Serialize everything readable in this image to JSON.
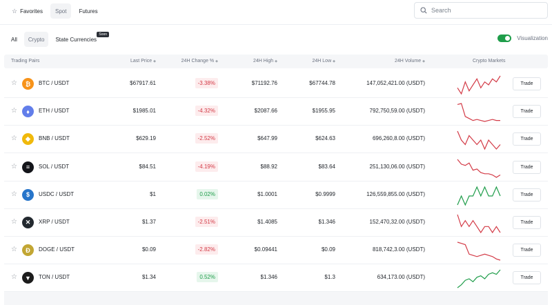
{
  "topbar": {
    "tabs": [
      {
        "label": "Favorites",
        "icon": "star-icon"
      },
      {
        "label": "Spot"
      },
      {
        "label": "Futures"
      }
    ],
    "search_placeholder": "Search"
  },
  "subbar": {
    "tabs": [
      "All",
      "Crypto",
      "State Currencies"
    ],
    "soon_badge": "Soon",
    "visualization_label": "Visualization"
  },
  "table": {
    "headers": {
      "pair": "Trading Pairs",
      "price": "Last Price",
      "change": "24H Change %",
      "high": "24H High",
      "low": "24H Low",
      "volume": "24H Volume",
      "markets": "Crypto Markets"
    },
    "trade_label": "Trade",
    "rows": [
      {
        "pair": "BTC / USDT",
        "price": "$67917.61",
        "change": "-3.38%",
        "dir": "neg",
        "high": "$71192.76",
        "low": "$67744.78",
        "volume": "147,052,421.00 (USDT)",
        "icon": "btc-icon",
        "color": "#f7931a",
        "glyph": "₿",
        "spark": [
          92,
          90,
          94,
          91,
          93,
          95,
          92,
          94,
          93,
          95,
          94,
          96
        ]
      },
      {
        "pair": "ETH / USDT",
        "price": "$1985.01",
        "change": "-4.32%",
        "dir": "neg",
        "high": "$2087.66",
        "low": "$1955.95",
        "volume": "792,750,59.00 (USDT)",
        "icon": "eth-icon",
        "color": "#627eea",
        "glyph": "♦",
        "spark": [
          96,
          97,
          84,
          82,
          80,
          81,
          80,
          79,
          80,
          81,
          80,
          80
        ]
      },
      {
        "pair": "BNB / USDT",
        "price": "$629.19",
        "change": "-2.52%",
        "dir": "neg",
        "high": "$647.99",
        "low": "$624.63",
        "volume": "696,260,8.00 (USDT)",
        "icon": "bnb-icon",
        "color": "#f0b90b",
        "glyph": "◆",
        "spark": [
          96,
          94,
          93,
          95,
          94,
          93,
          94,
          92,
          94,
          93,
          92,
          93
        ]
      },
      {
        "pair": "SOL / USDT",
        "price": "$84.51",
        "change": "-4.19%",
        "dir": "neg",
        "high": "$88.92",
        "low": "$83.64",
        "volume": "251,130,06.00 (USDT)",
        "icon": "sol-icon",
        "color": "#14151a",
        "glyph": "≡",
        "spark": [
          97,
          93,
          92,
          94,
          88,
          89,
          86,
          85,
          85,
          84,
          82,
          84
        ]
      },
      {
        "pair": "USDC / USDT",
        "price": "$1",
        "change": "0.02%",
        "dir": "pos",
        "high": "$1.0001",
        "low": "$0.9999",
        "volume": "126,559,855.00 (USDT)",
        "icon": "usdc-icon",
        "color": "#2775ca",
        "glyph": "$",
        "spark": [
          0.9999,
          1.0,
          0.9999,
          1.0,
          1.0,
          1.0001,
          1.0,
          1.0001,
          1.0,
          1.0,
          1.0001,
          1.0
        ]
      },
      {
        "pair": "XRP / USDT",
        "price": "$1.37",
        "change": "-2.51%",
        "dir": "neg",
        "high": "$1.4085",
        "low": "$1.346",
        "volume": "152,470,32.00 (USDT)",
        "icon": "xrp-icon",
        "color": "#23292f",
        "glyph": "✕",
        "spark": [
          95,
          93,
          94,
          93,
          94,
          93,
          92,
          93,
          93,
          92,
          93,
          92
        ]
      },
      {
        "pair": "DOGE / USDT",
        "price": "$0.09",
        "change": "-2.82%",
        "dir": "neg",
        "high": "$0.09441",
        "low": "$0.09",
        "volume": "818,742,3.00 (USDT)",
        "icon": "doge-icon",
        "color": "#c2a633",
        "glyph": "Ð",
        "spark": [
          96,
          95,
          94,
          86,
          85,
          84,
          85,
          86,
          85,
          84,
          82,
          81
        ]
      },
      {
        "pair": "TON / USDT",
        "price": "$1.34",
        "change": "0.52%",
        "dir": "pos",
        "high": "$1.346",
        "low": "$1.3",
        "volume": "634,173.00 (USDT)",
        "icon": "ton-icon",
        "color": "#1c1c1c",
        "glyph": "▼",
        "spark": [
          80,
          82,
          85,
          86,
          84,
          87,
          88,
          86,
          89,
          90,
          89,
          92
        ]
      }
    ]
  }
}
